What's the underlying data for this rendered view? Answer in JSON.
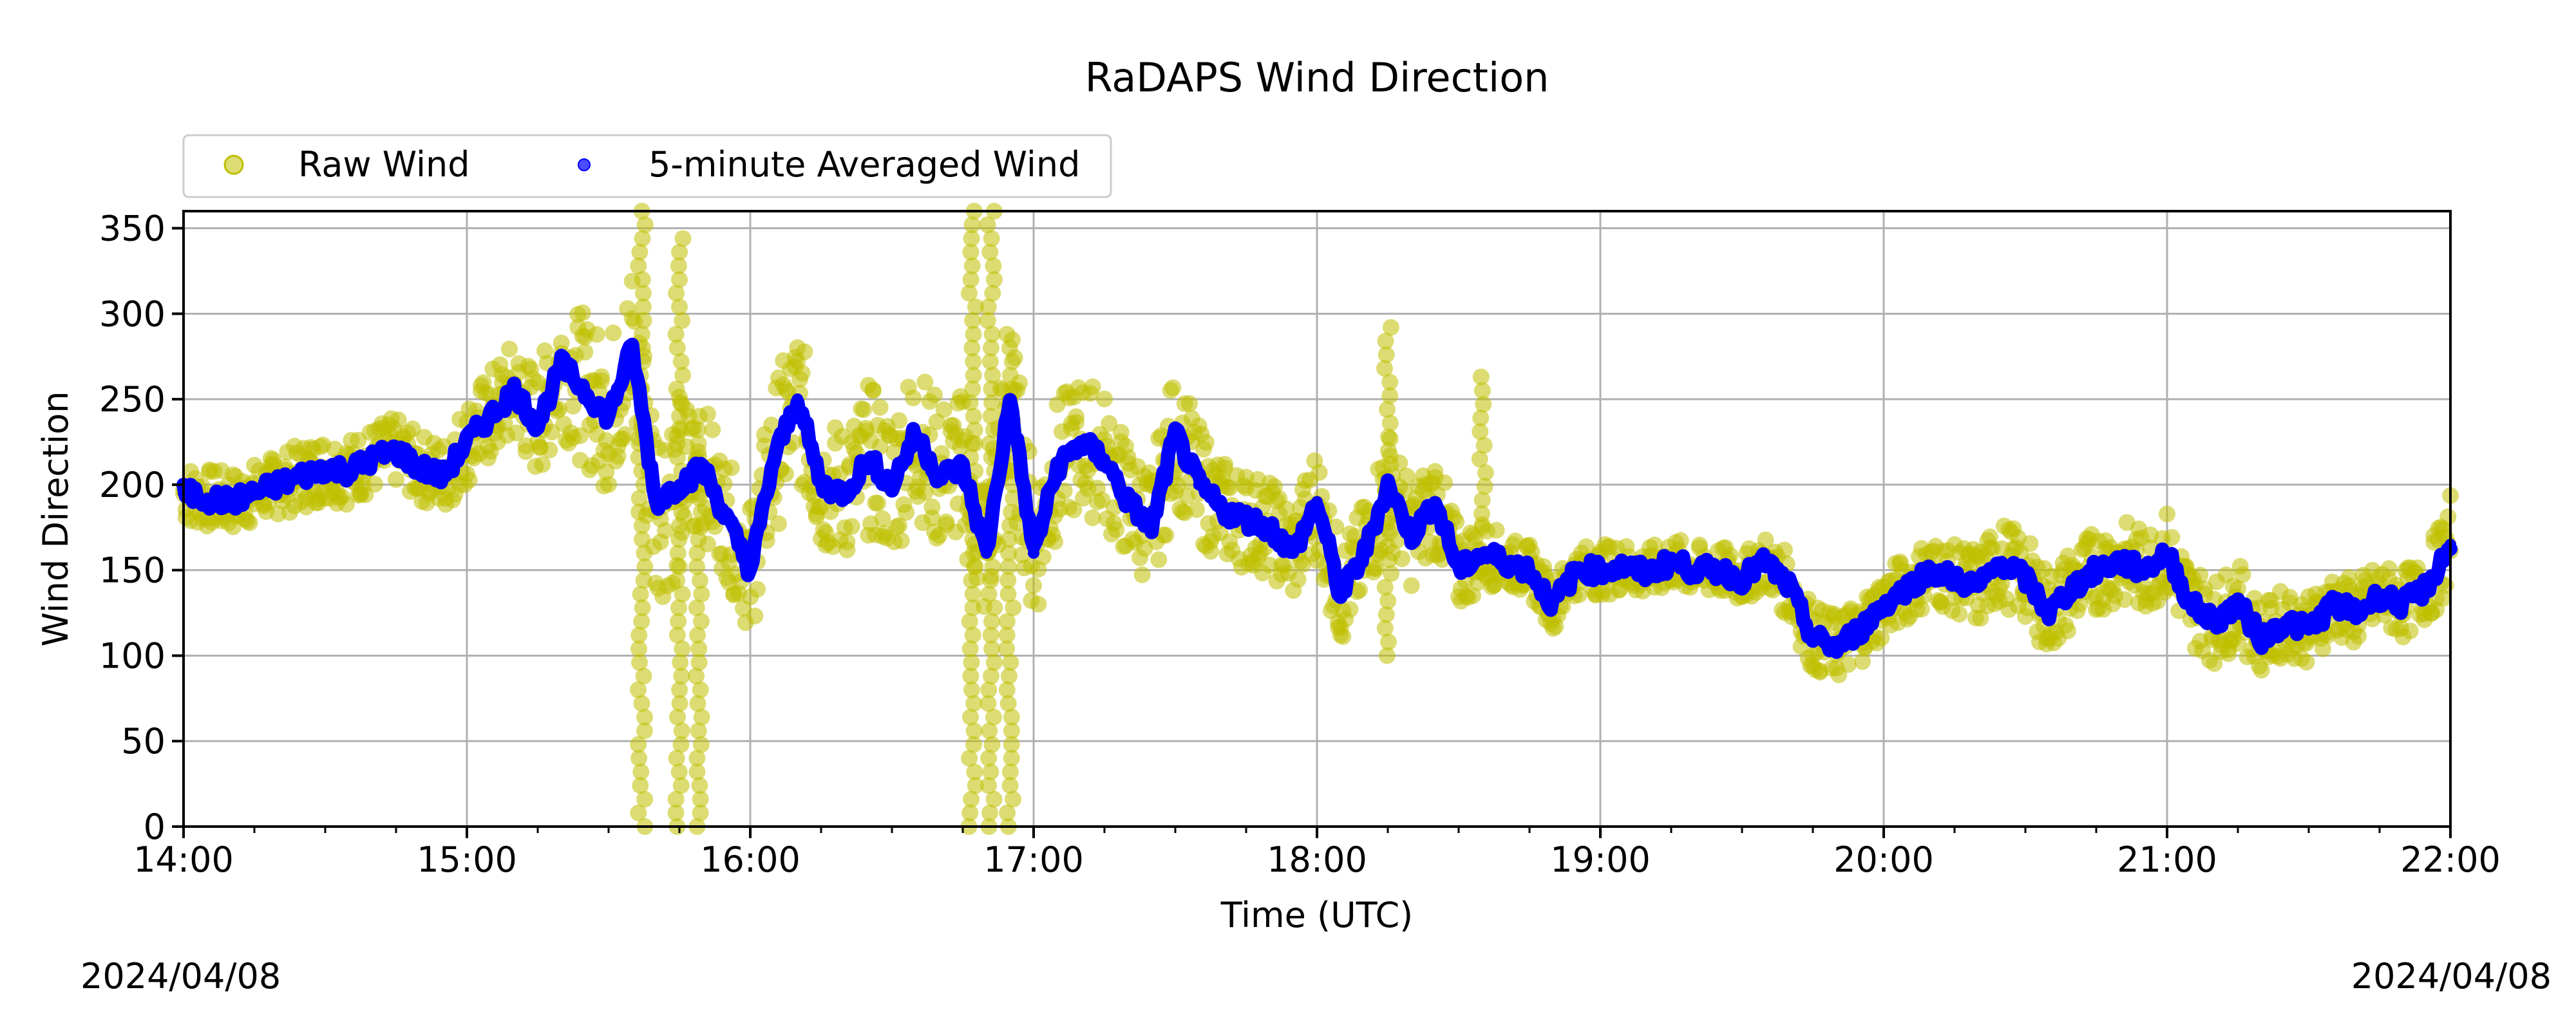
{
  "chart_data": {
    "type": "scatter",
    "title": "RaDAPS Wind Direction",
    "xlabel": "Time (UTC)",
    "ylabel": "Wind Direction",
    "xlim": [
      "14:00",
      "22:00"
    ],
    "ylim": [
      0,
      360
    ],
    "x_ticks": [
      "14:00",
      "15:00",
      "16:00",
      "17:00",
      "18:00",
      "19:00",
      "20:00",
      "21:00",
      "22:00"
    ],
    "y_ticks": [
      0,
      50,
      100,
      150,
      200,
      250,
      300,
      350
    ],
    "x_minor_ticks_per_major": 4,
    "grid": true,
    "legend_position": "top-left, above plot, two columns",
    "start_date": "2024/04/08",
    "end_date": "2024/04/08",
    "colors": {
      "raw": "#bfbf00",
      "average": "#0000ff"
    },
    "legend": [
      {
        "label": "Raw Wind",
        "marker": "circle",
        "color": "#bfbf00"
      },
      {
        "label": "5-minute Averaged Wind",
        "marker": "dot",
        "color": "#0000ff"
      }
    ],
    "series": [
      {
        "name": "5-minute Averaged Wind",
        "x": [
          "14:00",
          "14:05",
          "14:10",
          "14:15",
          "14:20",
          "14:25",
          "14:30",
          "14:35",
          "14:40",
          "14:45",
          "14:50",
          "14:55",
          "15:00",
          "15:05",
          "15:10",
          "15:15",
          "15:20",
          "15:25",
          "15:30",
          "15:35",
          "15:40",
          "15:45",
          "15:50",
          "15:55",
          "16:00",
          "16:05",
          "16:10",
          "16:15",
          "16:20",
          "16:25",
          "16:30",
          "16:35",
          "16:40",
          "16:45",
          "16:50",
          "16:55",
          "17:00",
          "17:05",
          "17:10",
          "17:15",
          "17:20",
          "17:25",
          "17:30",
          "17:35",
          "17:40",
          "17:45",
          "17:50",
          "17:55",
          "18:00",
          "18:05",
          "18:10",
          "18:15",
          "18:20",
          "18:25",
          "18:30",
          "18:35",
          "18:40",
          "18:45",
          "18:50",
          "18:55",
          "19:00",
          "19:05",
          "19:10",
          "19:15",
          "19:20",
          "19:25",
          "19:30",
          "19:35",
          "19:40",
          "19:45",
          "19:50",
          "19:55",
          "20:00",
          "20:05",
          "20:10",
          "20:15",
          "20:20",
          "20:25",
          "20:30",
          "20:35",
          "20:40",
          "20:45",
          "20:50",
          "20:55",
          "21:00",
          "21:05",
          "21:10",
          "21:15",
          "21:20",
          "21:25",
          "21:30",
          "21:35",
          "21:40",
          "21:45",
          "21:50",
          "21:55",
          "22:00"
        ],
        "y": [
          195,
          192,
          190,
          195,
          200,
          205,
          210,
          208,
          215,
          220,
          210,
          205,
          225,
          240,
          255,
          235,
          270,
          255,
          240,
          280,
          190,
          200,
          210,
          180,
          150,
          215,
          250,
          200,
          195,
          215,
          200,
          230,
          205,
          210,
          160,
          250,
          160,
          210,
          225,
          215,
          190,
          175,
          230,
          200,
          185,
          180,
          175,
          160,
          190,
          135,
          160,
          200,
          170,
          190,
          150,
          160,
          155,
          150,
          130,
          150,
          150,
          152,
          148,
          155,
          150,
          150,
          145,
          155,
          140,
          110,
          105,
          115,
          130,
          140,
          150,
          145,
          140,
          155,
          145,
          125,
          140,
          150,
          155,
          150,
          160,
          130,
          120,
          130,
          110,
          120,
          115,
          130,
          125,
          135,
          130,
          140,
          165
        ]
      },
      {
        "name": "Raw Wind",
        "spread": [
          18,
          18,
          18,
          18,
          18,
          20,
          20,
          20,
          20,
          20,
          20,
          22,
          25,
          28,
          30,
          32,
          40,
          45,
          45,
          50,
          60,
          55,
          40,
          35,
          40,
          45,
          45,
          40,
          40,
          45,
          45,
          45,
          45,
          45,
          50,
          50,
          45,
          40,
          40,
          40,
          35,
          35,
          40,
          35,
          30,
          30,
          28,
          28,
          35,
          30,
          30,
          35,
          30,
          30,
          25,
          20,
          15,
          15,
          15,
          15,
          15,
          15,
          15,
          15,
          15,
          15,
          15,
          15,
          20,
          20,
          20,
          20,
          20,
          20,
          20,
          20,
          25,
          25,
          25,
          25,
          25,
          25,
          25,
          25,
          25,
          25,
          25,
          25,
          20,
          20,
          20,
          20,
          20,
          20,
          20,
          20,
          30
        ],
        "outlier_times": [
          "15:37",
          "15:45",
          "15:49",
          "16:47",
          "16:51",
          "16:55",
          "18:15",
          "18:35"
        ],
        "outlier_values": [
          [
            0,
            360
          ],
          [
            0,
            350
          ],
          [
            0,
            240
          ],
          [
            0,
            360
          ],
          [
            0,
            360
          ],
          [
            0,
            290
          ],
          [
            100,
            295
          ],
          [
            175,
            270
          ]
        ]
      }
    ]
  }
}
